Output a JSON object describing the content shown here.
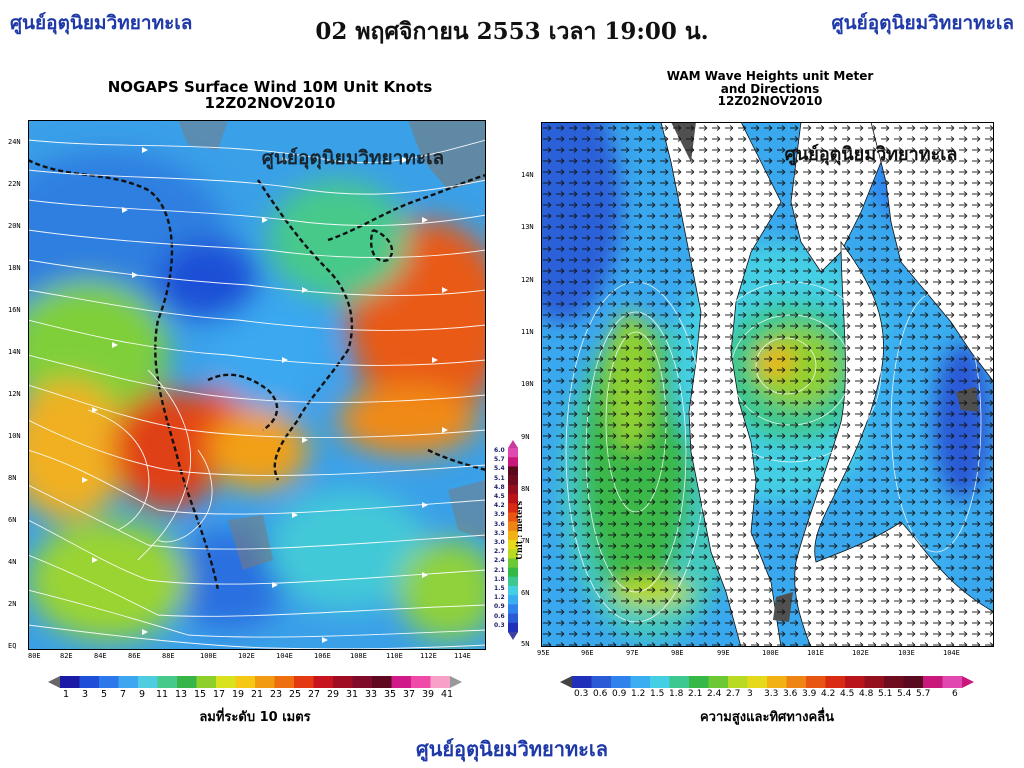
{
  "header": {
    "brand_left": "ศูนย์อุตุนิยมวิทยาทะเล",
    "brand_right": "ศูนย์อุตุนิยมวิทยาทะเล",
    "datetime": "02 พฤศจิกายน 2553 เวลา 19:00 น.",
    "footer_brand": "ศูนย์อุตุนิยมวิทยาทะเล"
  },
  "wind_map": {
    "title_line1": "NOGAPS Surface Wind 10M Unit Knots",
    "title_line2": "12Z02NOV2010",
    "watermark": "ศูนย์อุตุนิยมวิทยาทะเล",
    "lat_labels": [
      "24N",
      "22N",
      "20N",
      "18N",
      "16N",
      "14N",
      "12N",
      "10N",
      "8N",
      "6N",
      "4N",
      "2N",
      "EQ"
    ],
    "lon_labels": [
      "80E",
      "82E",
      "84E",
      "86E",
      "88E",
      "100E",
      "102E",
      "104E",
      "106E",
      "108E",
      "110E",
      "112E",
      "114E"
    ],
    "legend_values": [
      "1",
      "3",
      "5",
      "7",
      "9",
      "11",
      "13",
      "15",
      "17",
      "19",
      "21",
      "23",
      "25",
      "27",
      "29",
      "31",
      "33",
      "35",
      "37",
      "39",
      "41"
    ],
    "legend_caption": "ลมที่ระดับ 10 เมตร",
    "side_scale_values": [
      "6.0",
      "5.7",
      "5.4",
      "5.1",
      "4.8",
      "4.5",
      "4.2",
      "3.9",
      "3.6",
      "3.3",
      "3.0",
      "2.7",
      "2.4",
      "2.1",
      "1.8",
      "1.5",
      "1.2",
      "0.9",
      "0.6",
      "0.3"
    ],
    "side_scale_unit": "Unit : meters"
  },
  "wave_map": {
    "title_line1": "WAM Wave Heights unit Meter",
    "title_line2": "and Directions",
    "title_line3": "12Z02NOV2010",
    "watermark": "ศูนย์อุตุนิยมวิทยาทะเล",
    "lat_labels": [
      "14N",
      "13N",
      "12N",
      "11N",
      "10N",
      "9N",
      "8N",
      "7N",
      "6N",
      "5N"
    ],
    "lon_labels": [
      "95E",
      "96E",
      "97E",
      "98E",
      "99E",
      "100E",
      "101E",
      "102E",
      "103E",
      "104E"
    ],
    "legend_values": [
      "0.3",
      "0.6",
      "0.9",
      "1.2",
      "1.5",
      "1.8",
      "2.1",
      "2.4",
      "2.7",
      "3",
      "3.3",
      "3.6",
      "3.9",
      "4.2",
      "4.5",
      "4.8",
      "5.1",
      "5.4",
      "5.7",
      "6"
    ],
    "legend_caption": "ความสูงและทิศทางคลื่น"
  },
  "colors": {
    "brand": "#1f3aa8",
    "wind_scale": [
      "#1a1aa6",
      "#1f4fd6",
      "#2a78ea",
      "#3da6f0",
      "#4ecde0",
      "#46c98a",
      "#38b548",
      "#8fcf2a",
      "#d9e21c",
      "#f5c814",
      "#f29a12",
      "#ee6f10",
      "#e33a14",
      "#c8141e",
      "#a00d22",
      "#800a2a",
      "#600820",
      "#d01a8a",
      "#f04aa8",
      "#f7a0c8"
    ],
    "wave_scale": [
      "#2030b8",
      "#2a5ad6",
      "#2f82ec",
      "#3aaef0",
      "#44cfe4",
      "#3cc890",
      "#35b846",
      "#6cc834",
      "#b8da22",
      "#e6d81a",
      "#f2b216",
      "#ee8414",
      "#e85412",
      "#d92a14",
      "#b8141a",
      "#94101e",
      "#700c20",
      "#5a0a1e",
      "#c8187c",
      "#e04ab0"
    ]
  }
}
